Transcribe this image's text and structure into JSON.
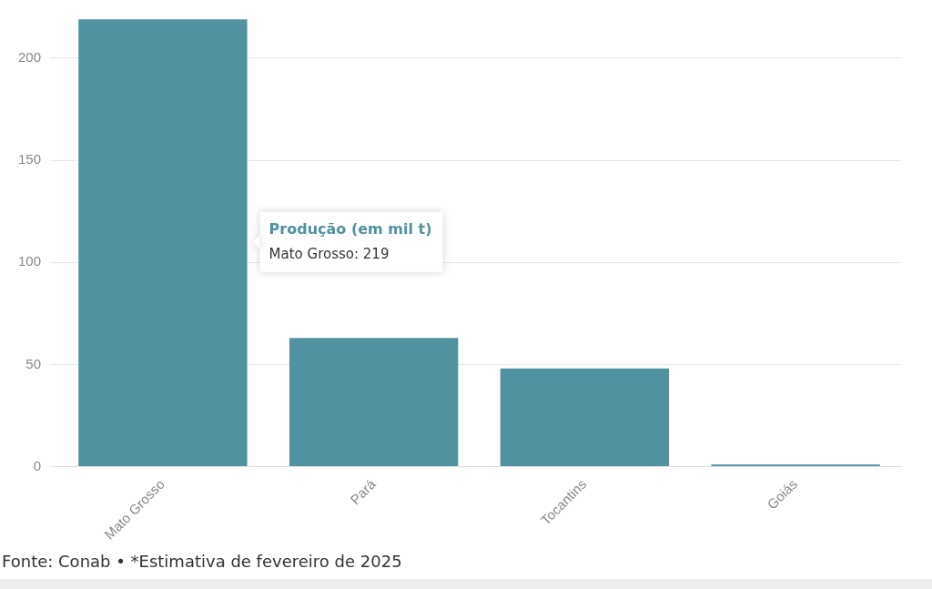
{
  "chart_data": {
    "type": "bar",
    "categories": [
      "Mato Grosso",
      "Pará",
      "Tocantins",
      "Goiás"
    ],
    "series": [
      {
        "name": "Produção (em mil t)",
        "color": "#5092a0",
        "values": [
          219,
          63,
          48,
          1
        ]
      }
    ],
    "ylim": [
      0,
      220
    ],
    "yticks": [
      0,
      50,
      100,
      150,
      200
    ],
    "grid": "y",
    "legend": false,
    "annotations": [
      "Mato Grosso: 219",
      "Fonte: Conab • *Estimativa de fevereiro de 2025"
    ]
  }
}
